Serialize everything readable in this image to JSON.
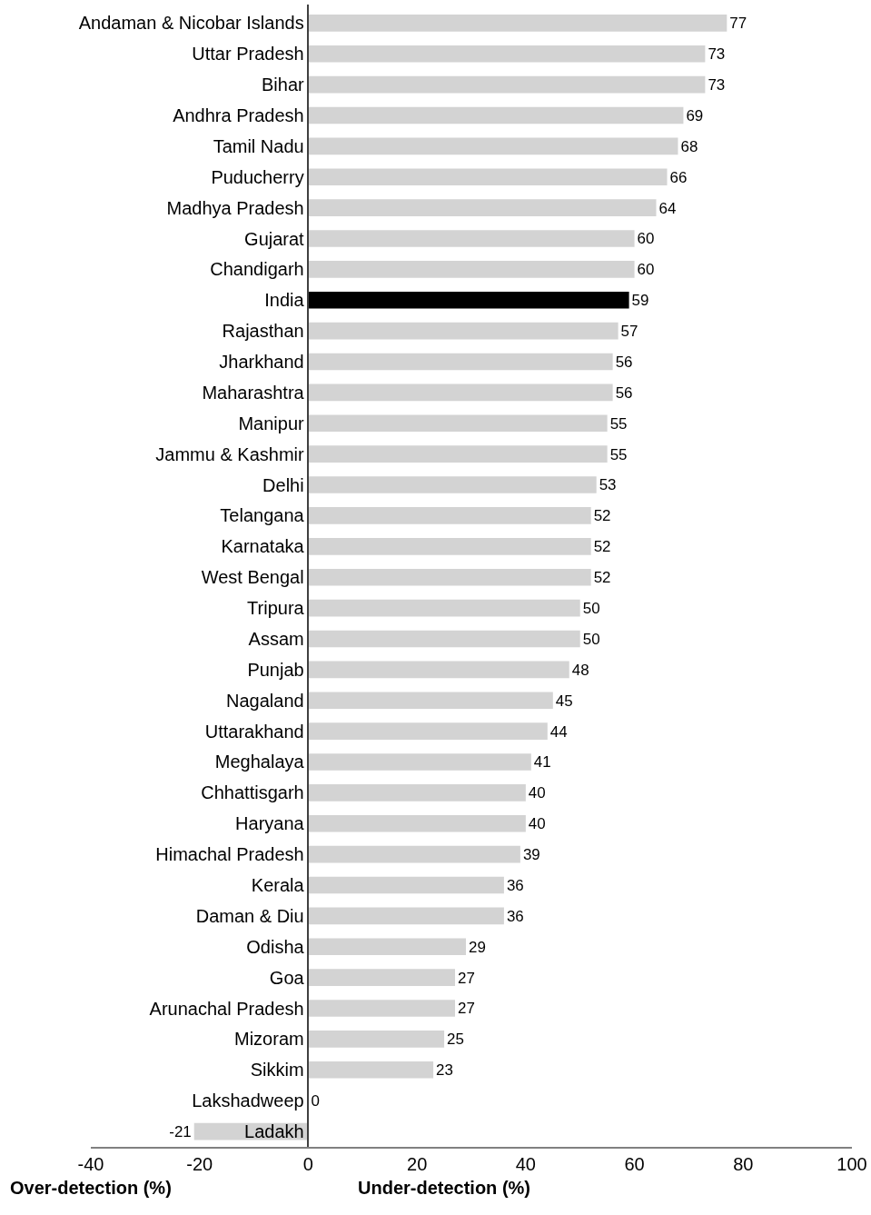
{
  "chart_data": {
    "type": "bar",
    "orientation": "horizontal",
    "categories": [
      "Andaman & Nicobar Islands",
      "Uttar Pradesh",
      "Bihar",
      "Andhra Pradesh",
      "Tamil Nadu",
      "Puducherry",
      "Madhya Pradesh",
      "Gujarat",
      "Chandigarh",
      "India",
      "Rajasthan",
      "Jharkhand",
      "Maharashtra",
      "Manipur",
      "Jammu & Kashmir",
      "Delhi",
      "Telangana",
      "Karnataka",
      "West Bengal",
      "Tripura",
      "Assam",
      "Punjab",
      "Nagaland",
      "Uttarakhand",
      "Meghalaya",
      "Chhattisgarh",
      "Haryana",
      "Himachal Pradesh",
      "Kerala",
      "Daman & Diu",
      "Odisha",
      "Goa",
      "Arunachal Pradesh",
      "Mizoram",
      "Sikkim",
      "Lakshadweep",
      "Ladakh"
    ],
    "values": [
      77,
      73,
      73,
      69,
      68,
      66,
      64,
      60,
      60,
      59,
      57,
      56,
      56,
      55,
      55,
      53,
      52,
      52,
      52,
      50,
      50,
      48,
      45,
      44,
      41,
      40,
      40,
      39,
      36,
      36,
      29,
      27,
      27,
      25,
      23,
      0,
      -21
    ],
    "colors": [
      "#d3d3d3",
      "#d3d3d3",
      "#d3d3d3",
      "#d3d3d3",
      "#d3d3d3",
      "#d3d3d3",
      "#d3d3d3",
      "#d3d3d3",
      "#d3d3d3",
      "#000000",
      "#d3d3d3",
      "#d3d3d3",
      "#d3d3d3",
      "#d3d3d3",
      "#d3d3d3",
      "#d3d3d3",
      "#d3d3d3",
      "#d3d3d3",
      "#d3d3d3",
      "#d3d3d3",
      "#d3d3d3",
      "#d3d3d3",
      "#d3d3d3",
      "#d3d3d3",
      "#d3d3d3",
      "#d3d3d3",
      "#d3d3d3",
      "#d3d3d3",
      "#d3d3d3",
      "#d3d3d3",
      "#d3d3d3",
      "#d3d3d3",
      "#d3d3d3",
      "#d3d3d3",
      "#d3d3d3",
      "#d3d3d3",
      "#d3d3d3"
    ],
    "xlim": [
      -40,
      100
    ],
    "xticks": [
      -40,
      -20,
      0,
      20,
      40,
      60,
      80,
      100
    ],
    "xlabel": "Under-detection (%)",
    "annotations": [
      "Over-detection (%)"
    ],
    "data_labels": true,
    "legend": false
  }
}
